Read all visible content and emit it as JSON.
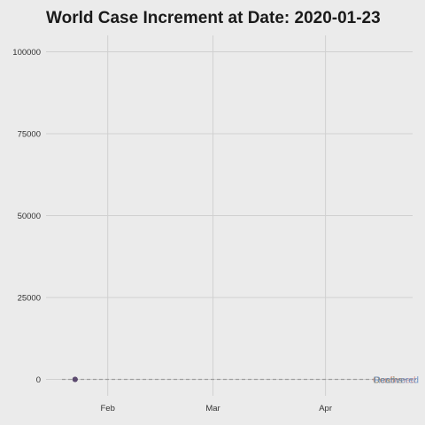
{
  "chart_data": {
    "type": "line",
    "title": "World Case Increment at Date: 2020-01-23",
    "title_prefix": "World Case Increment at Date:",
    "current_date": "2020-01-23",
    "xlabel": "",
    "ylabel": "",
    "x_range": [
      "2020-01-15",
      "2020-04-25"
    ],
    "ylim": [
      -5000,
      105000
    ],
    "y_ticks": [
      0,
      25000,
      50000,
      75000,
      100000
    ],
    "y_tick_labels": [
      "0",
      "25000",
      "50000",
      "75000",
      "100000"
    ],
    "x_ticks": [
      "2020-02-01",
      "2020-03-01",
      "2020-04-01"
    ],
    "x_tick_labels": [
      "Feb",
      "Mar",
      "Apr"
    ],
    "grid": true,
    "reference_line": {
      "y": 0,
      "style": "dashed",
      "color": "#9e9e9e"
    },
    "series": [
      {
        "name": "Confirmed",
        "color": "#d98c84",
        "points": [
          {
            "x": "2020-01-23",
            "y": 0
          }
        ]
      },
      {
        "name": "Deaths",
        "color": "#8f8a5a",
        "points": [
          {
            "x": "2020-01-23",
            "y": 0
          }
        ]
      },
      {
        "name": "Recovered",
        "color": "#5b86c2",
        "points": [
          {
            "x": "2020-01-23",
            "y": 0
          }
        ]
      }
    ],
    "end_labels": [
      "Confirmed",
      "Deaths",
      "Recovered"
    ],
    "marker_color": "#5c4a6e"
  }
}
